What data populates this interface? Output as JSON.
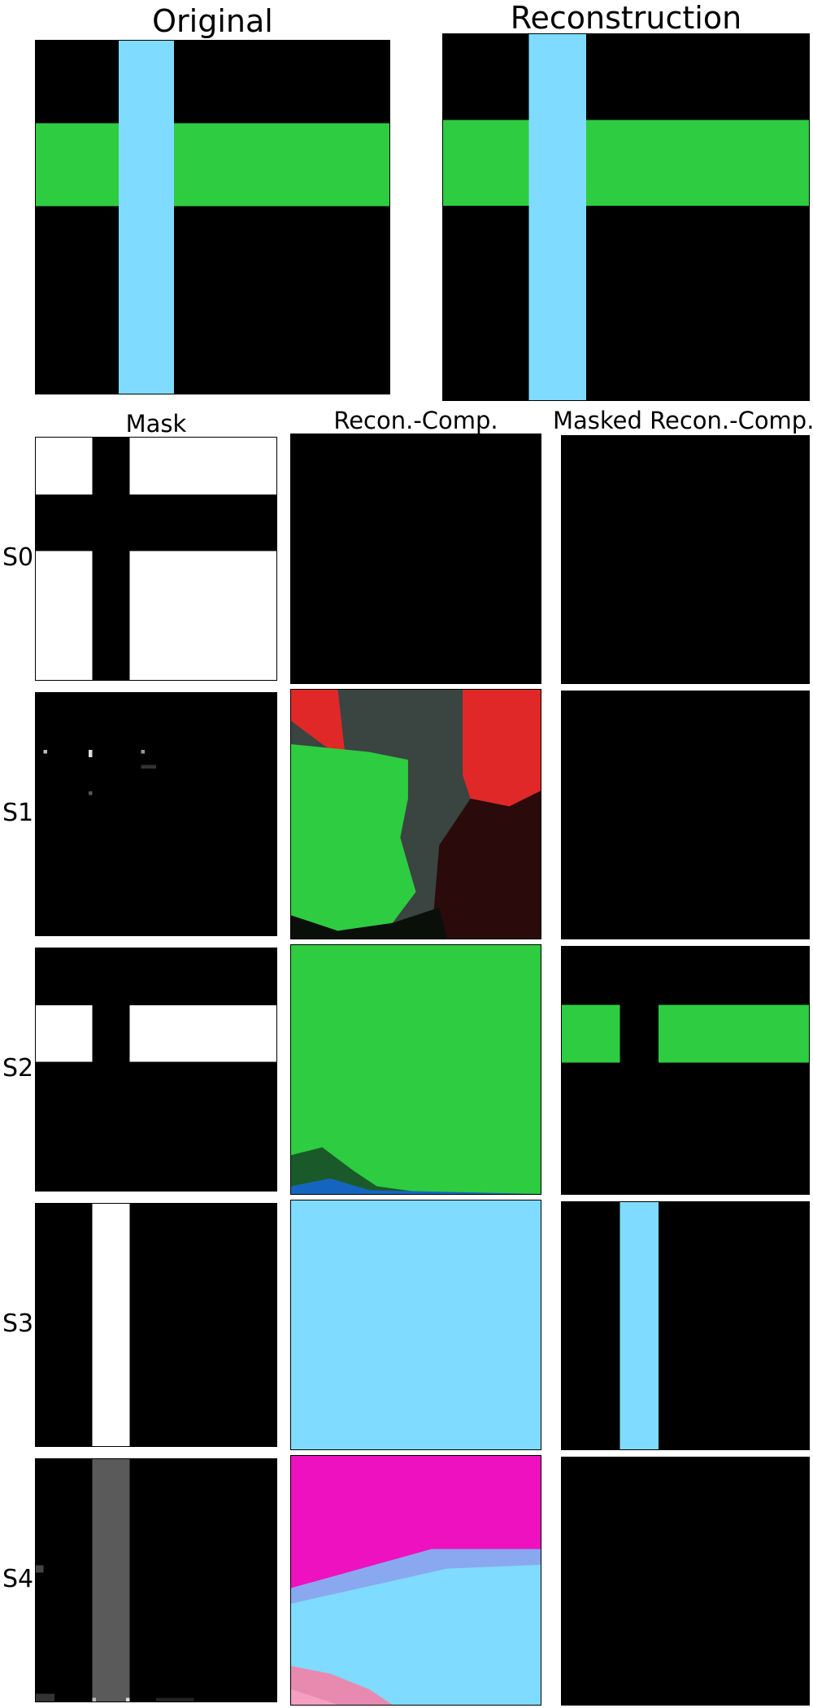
{
  "titles": {
    "original": "Original",
    "reconstruction": "Reconstruction",
    "mask": "Mask",
    "recon_comp": "Recon.-Comp.",
    "masked_recon_comp": "Masked Recon.-Comp."
  },
  "slots": [
    "S0",
    "S1",
    "S2",
    "S3",
    "S4"
  ],
  "colors": {
    "background": "#000000",
    "horizontal_bar": "#2ECC40",
    "vertical_bar": "#7FDBFF",
    "mask_on": "#FFFFFF",
    "mask_partial": "#5A5A5A",
    "slot1_red": "#E02828",
    "slot1_gray": "#3A4440",
    "slot4_magenta": "#EE11C0",
    "slot4_blue": "#8AA8F0"
  }
}
